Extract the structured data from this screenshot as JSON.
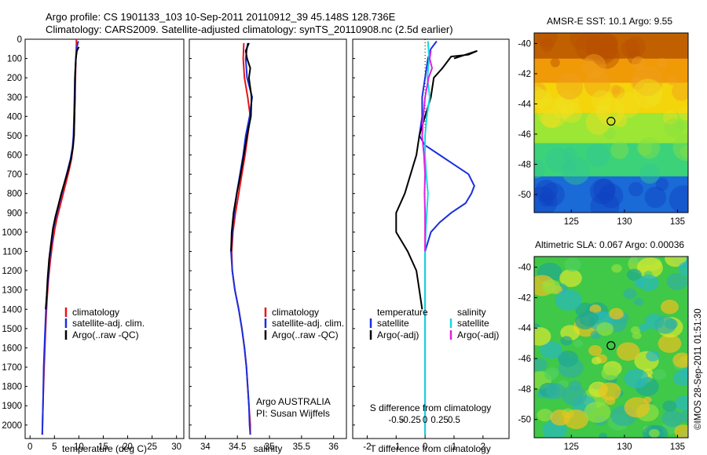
{
  "header": {
    "line1": "Argo profile: CS 1901133_103 10-Sep-2011 20110912_39 45.148S 128.736E",
    "line2": "Climatology: CARS2009. Satellite-adjusted climatology: synTS_20110908.nc (2.5d earlier)"
  },
  "colors": {
    "climatology": "#e8141a",
    "satellite": "#1a2fe0",
    "argo": "#000000",
    "sal_satellite": "#18d8e0",
    "sal_argo": "#e020e0"
  },
  "footer": {
    "agency": "Argo AUSTRALIA",
    "pi": "PI: Susan Wijffels",
    "credit": "©IMOS 28-Sep-2011 01:51:30"
  },
  "chart_data": [
    {
      "type": "line",
      "xlabel": "temperature (deg C)",
      "ylabel": "",
      "xlim": [
        -1,
        31.5
      ],
      "ylim": [
        2070,
        0
      ],
      "xticks": [
        0,
        5,
        10,
        15,
        20,
        25,
        30
      ],
      "yticks": [
        0,
        100,
        200,
        300,
        400,
        500,
        600,
        700,
        800,
        900,
        1000,
        1100,
        1200,
        1300,
        1400,
        1500,
        1600,
        1700,
        1800,
        1900,
        2000
      ],
      "legend": [
        "climatology",
        "satellite-adj. clim.",
        "Argo(..raw -QC)"
      ],
      "legend_position": "lower-right",
      "series": [
        {
          "name": "climatology",
          "color": "#e8141a",
          "points": [
            [
              9.5,
              0
            ],
            [
              9.5,
              30
            ],
            [
              9.4,
              100
            ],
            [
              9.3,
              200
            ],
            [
              9.2,
              300
            ],
            [
              9.1,
              400
            ],
            [
              9.0,
              500
            ],
            [
              8.8,
              560
            ],
            [
              8.5,
              620
            ],
            [
              8.0,
              680
            ],
            [
              7.4,
              740
            ],
            [
              6.8,
              800
            ],
            [
              6.2,
              860
            ],
            [
              5.6,
              920
            ],
            [
              5.1,
              980
            ],
            [
              4.6,
              1060
            ],
            [
              4.2,
              1140
            ],
            [
              3.8,
              1240
            ],
            [
              3.5,
              1340
            ],
            [
              3.3,
              1440
            ],
            [
              3.1,
              1560
            ],
            [
              2.9,
              1700
            ],
            [
              2.7,
              1850
            ],
            [
              2.6,
              1950
            ],
            [
              2.5,
              2050
            ]
          ]
        },
        {
          "name": "satellite-adj. clim.",
          "color": "#1a2fe0",
          "points": [
            [
              9.9,
              10
            ],
            [
              9.6,
              40
            ],
            [
              9.4,
              100
            ],
            [
              9.2,
              200
            ],
            [
              9.1,
              300
            ],
            [
              9.0,
              400
            ],
            [
              8.9,
              500
            ],
            [
              8.7,
              560
            ],
            [
              8.3,
              620
            ],
            [
              7.7,
              680
            ],
            [
              7.1,
              740
            ],
            [
              6.5,
              800
            ],
            [
              5.9,
              860
            ],
            [
              5.3,
              920
            ],
            [
              4.8,
              980
            ],
            [
              4.4,
              1060
            ],
            [
              4.0,
              1140
            ],
            [
              3.7,
              1240
            ],
            [
              3.4,
              1340
            ],
            [
              3.2,
              1440
            ],
            [
              3.0,
              1560
            ],
            [
              2.8,
              1700
            ],
            [
              2.7,
              1850
            ],
            [
              2.6,
              1950
            ],
            [
              2.5,
              2050
            ]
          ]
        },
        {
          "name": "Argo(..raw -QC)",
          "color": "#000000",
          "points": [
            [
              10.0,
              40
            ],
            [
              9.6,
              60
            ],
            [
              9.4,
              100
            ],
            [
              9.2,
              200
            ],
            [
              9.2,
              300
            ],
            [
              9.1,
              400
            ],
            [
              9.0,
              500
            ],
            [
              8.8,
              560
            ],
            [
              8.4,
              620
            ],
            [
              7.8,
              680
            ],
            [
              7.1,
              740
            ],
            [
              6.4,
              800
            ],
            [
              5.8,
              860
            ],
            [
              5.2,
              920
            ],
            [
              4.7,
              980
            ],
            [
              4.3,
              1060
            ],
            [
              3.9,
              1140
            ],
            [
              3.6,
              1240
            ],
            [
              3.4,
              1340
            ],
            [
              3.2,
              1400
            ]
          ]
        }
      ]
    },
    {
      "type": "line",
      "xlabel": "salinity",
      "xlim": [
        33.75,
        36.2
      ],
      "ylim": [
        2070,
        0
      ],
      "xticks": [
        34,
        34.5,
        35,
        35.5,
        36
      ],
      "legend": [
        "climatology",
        "satellite-adj. clim.",
        "Argo(..raw -QC)"
      ],
      "legend_position": "lower-right",
      "series": [
        {
          "name": "climatology",
          "color": "#e8141a",
          "points": [
            [
              34.6,
              20
            ],
            [
              34.59,
              100
            ],
            [
              34.61,
              200
            ],
            [
              34.66,
              300
            ],
            [
              34.7,
              400
            ],
            [
              34.66,
              500
            ],
            [
              34.62,
              600
            ],
            [
              34.57,
              700
            ],
            [
              34.52,
              800
            ],
            [
              34.47,
              900
            ],
            [
              34.43,
              1000
            ],
            [
              34.41,
              1100
            ],
            [
              34.42,
              1200
            ],
            [
              34.46,
              1300
            ],
            [
              34.52,
              1400
            ],
            [
              34.57,
              1500
            ],
            [
              34.61,
              1600
            ],
            [
              34.64,
              1700
            ],
            [
              34.66,
              1800
            ],
            [
              34.68,
              1900
            ],
            [
              34.7,
              2000
            ],
            [
              34.7,
              2050
            ]
          ]
        },
        {
          "name": "satellite-adj. clim.",
          "color": "#1a2fe0",
          "points": [
            [
              34.66,
              20
            ],
            [
              34.63,
              100
            ],
            [
              34.65,
              200
            ],
            [
              34.73,
              300
            ],
            [
              34.69,
              400
            ],
            [
              34.63,
              500
            ],
            [
              34.59,
              600
            ],
            [
              34.54,
              700
            ],
            [
              34.49,
              800
            ],
            [
              34.45,
              900
            ],
            [
              34.42,
              1000
            ],
            [
              34.4,
              1100
            ],
            [
              34.42,
              1200
            ],
            [
              34.46,
              1300
            ],
            [
              34.52,
              1400
            ],
            [
              34.57,
              1500
            ],
            [
              34.61,
              1600
            ],
            [
              34.64,
              1700
            ],
            [
              34.66,
              1800
            ],
            [
              34.68,
              1900
            ],
            [
              34.69,
              2000
            ],
            [
              34.7,
              2050
            ]
          ]
        },
        {
          "name": "Argo(..raw -QC)",
          "color": "#000000",
          "points": [
            [
              34.68,
              20
            ],
            [
              34.63,
              60
            ],
            [
              34.65,
              100
            ],
            [
              34.7,
              150
            ],
            [
              34.68,
              200
            ],
            [
              34.72,
              300
            ],
            [
              34.71,
              400
            ],
            [
              34.65,
              500
            ],
            [
              34.6,
              600
            ],
            [
              34.55,
              700
            ],
            [
              34.49,
              800
            ],
            [
              34.44,
              900
            ],
            [
              34.41,
              1000
            ],
            [
              34.4,
              1100
            ]
          ]
        }
      ]
    },
    {
      "type": "line",
      "xlabel": "T difference from climatology",
      "xlabel_top": "S difference from climatology",
      "xlim": [
        -2.5,
        2.9
      ],
      "ylim": [
        2070,
        0
      ],
      "xticks": [
        -2,
        -1,
        0,
        1,
        2
      ],
      "xticks_salinity": [
        -0.5,
        -0.25,
        0,
        0.25,
        0.5
      ],
      "legend": {
        "temperature": [
          "satellite",
          "Argo(-adj)"
        ],
        "salinity": [
          "satellite",
          "Argo(-adj)"
        ]
      },
      "legend_titles": [
        "temperature",
        "salinity"
      ],
      "series": [
        {
          "name": "temperature satellite",
          "color": "#1a2fe0",
          "points": [
            [
              0.4,
              10
            ],
            [
              0.2,
              50
            ],
            [
              0.1,
              100
            ],
            [
              0.0,
              200
            ],
            [
              -0.1,
              300
            ],
            [
              -0.1,
              400
            ],
            [
              -0.2,
              500
            ],
            [
              0.0,
              550
            ],
            [
              0.5,
              600
            ],
            [
              1.0,
              650
            ],
            [
              1.5,
              700
            ],
            [
              1.7,
              760
            ],
            [
              1.6,
              800
            ],
            [
              1.4,
              850
            ],
            [
              0.9,
              900
            ],
            [
              0.5,
              950
            ],
            [
              0.2,
              1000
            ],
            [
              0.0,
              1100
            ],
            [
              0.0,
              2050
            ]
          ]
        },
        {
          "name": "temperature Argo(-adj)",
          "color": "#000000",
          "points": [
            [
              1.0,
              100
            ],
            [
              1.8,
              60
            ],
            [
              1.5,
              80
            ],
            [
              0.9,
              90
            ],
            [
              0.6,
              150
            ],
            [
              0.3,
              200
            ],
            [
              0.2,
              300
            ],
            [
              0.0,
              400
            ],
            [
              -0.2,
              500
            ],
            [
              -0.3,
              600
            ],
            [
              -0.5,
              700
            ],
            [
              -0.7,
              800
            ],
            [
              -1.0,
              900
            ],
            [
              -1.0,
              1000
            ],
            [
              -0.6,
              1100
            ],
            [
              -0.3,
              1200
            ],
            [
              -0.2,
              1300
            ],
            [
              -0.1,
              1400
            ]
          ]
        },
        {
          "name": "salinity satellite",
          "color": "#18d8e0",
          "points": [
            [
              0.05,
              10
            ],
            [
              0.07,
              100
            ],
            [
              0.04,
              200
            ],
            [
              0.08,
              300
            ],
            [
              0.03,
              400
            ],
            [
              0.0,
              500
            ],
            [
              0.0,
              600
            ],
            [
              0.02,
              700
            ],
            [
              0.05,
              800
            ],
            [
              0.03,
              900
            ],
            [
              0.01,
              1000
            ],
            [
              0.0,
              1100
            ],
            [
              0.0,
              2050
            ]
          ]
        },
        {
          "name": "salinity Argo(-adj)",
          "color": "#e020e0",
          "points": [
            [
              0.1,
              60
            ],
            [
              0.08,
              100
            ],
            [
              0.12,
              150
            ],
            [
              0.06,
              200
            ],
            [
              0.0,
              300
            ],
            [
              -0.03,
              400
            ],
            [
              -0.05,
              500
            ],
            [
              -0.02,
              600
            ],
            [
              0.0,
              700
            ],
            [
              -0.01,
              800
            ],
            [
              0.0,
              900
            ],
            [
              0.0,
              1000
            ],
            [
              0.0,
              1100
            ]
          ]
        }
      ]
    },
    {
      "type": "heatmap",
      "title": "AMSR-E SST: 10.1 Argo: 9.55",
      "xlim": [
        121.5,
        136
      ],
      "ylim": [
        -51.2,
        -39.3
      ],
      "xticks": [
        125,
        130,
        135
      ],
      "yticks": [
        -40,
        -42,
        -44,
        -46,
        -48,
        -50
      ],
      "marker": {
        "lon": 128.736,
        "lat": -45.148
      },
      "colormap": "jet",
      "bands": [
        {
          "lat_top": -39.3,
          "lat_bottom": -41.0,
          "color": "#c06000"
        },
        {
          "lat_top": -41.0,
          "lat_bottom": -42.6,
          "color": "#f09a08"
        },
        {
          "lat_top": -42.6,
          "lat_bottom": -44.6,
          "color": "#f4d40a"
        },
        {
          "lat_top": -44.6,
          "lat_bottom": -46.6,
          "color": "#9ce636"
        },
        {
          "lat_top": -46.6,
          "lat_bottom": -48.8,
          "color": "#3cd27a"
        },
        {
          "lat_top": -48.8,
          "lat_bottom": -51.2,
          "color": "#1a6ad8"
        }
      ]
    },
    {
      "type": "heatmap",
      "title": "Altimetric SLA: 0.067 Argo: 0.00036",
      "xlim": [
        121.5,
        136
      ],
      "ylim": [
        -51.2,
        -39.3
      ],
      "xticks": [
        125,
        130,
        135
      ],
      "yticks": [
        -40,
        -42,
        -44,
        -46,
        -48,
        -50
      ],
      "marker": {
        "lon": 128.736,
        "lat": -45.148
      },
      "colormap": "jet"
    }
  ]
}
